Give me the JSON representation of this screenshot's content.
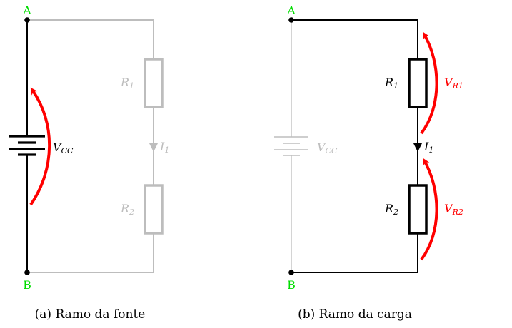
{
  "colors": {
    "active": "#000000",
    "inactive": "#bdbdbd",
    "arrow": "#ff0000",
    "node_label": "#00dd00"
  },
  "panel_a": {
    "caption": "(a) Ramo da fonte",
    "node_top": "A",
    "node_bottom": "B",
    "source": {
      "main": "V",
      "sub": "CC"
    },
    "r1": {
      "main": "R",
      "sub": "1"
    },
    "r2": {
      "main": "R",
      "sub": "2"
    },
    "current": {
      "main": "I",
      "sub": "1"
    }
  },
  "panel_b": {
    "caption": "(b) Ramo da carga",
    "node_top": "A",
    "node_bottom": "B",
    "source": {
      "main": "V",
      "sub": "CC"
    },
    "r1": {
      "main": "R",
      "sub": "1"
    },
    "r2": {
      "main": "R",
      "sub": "2"
    },
    "current": {
      "main": "I",
      "sub": "1"
    },
    "v_r1": {
      "main": "V",
      "sub": "R1"
    },
    "v_r2": {
      "main": "V",
      "sub": "R2"
    }
  }
}
